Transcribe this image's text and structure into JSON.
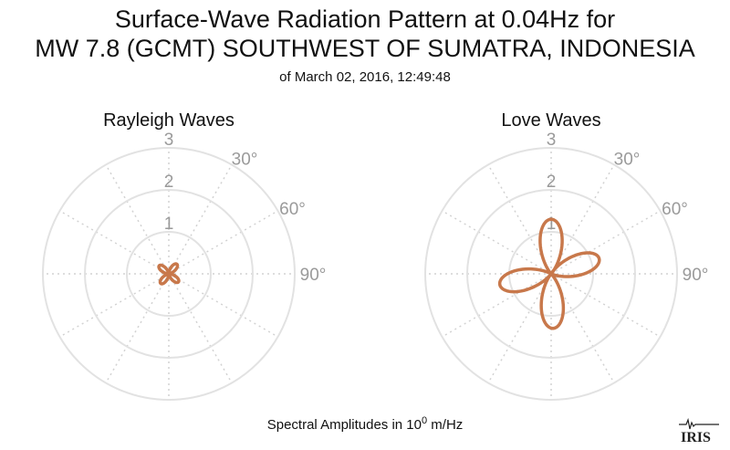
{
  "title": {
    "line1": "Surface-Wave Radiation Pattern at 0.04Hz for",
    "line2": "MW 7.8 (GCMT) SOUTHWEST OF SUMATRA, INDONESIA",
    "line3": "of March 02, 2016, 12:49:48"
  },
  "footer": {
    "prefix": "Spectral Amplitudes in 10",
    "exponent": "0",
    "suffix": " m/Hz"
  },
  "logo": {
    "text": "IRIS"
  },
  "colors": {
    "pattern": "#c8784b",
    "grid": "#e2e2e2",
    "labels": "#9a9a9a"
  },
  "chart_data": [
    {
      "type": "polar-line",
      "title": "Rayleigh Waves",
      "radial_ticks": [
        "1",
        "2",
        "3"
      ],
      "radial_range": [
        0,
        3
      ],
      "angle_ticks": [
        "30°",
        "60°",
        "90°"
      ],
      "series": [
        {
          "lobes": [
            {
              "azimuth_deg": 40,
              "amplitude": 0.3
            },
            {
              "azimuth_deg": 130,
              "amplitude": 0.3
            },
            {
              "azimuth_deg": 220,
              "amplitude": 0.3
            },
            {
              "azimuth_deg": 310,
              "amplitude": 0.3
            }
          ]
        }
      ]
    },
    {
      "type": "polar-line",
      "title": "Love Waves",
      "radial_ticks": [
        "1",
        "2",
        "3"
      ],
      "radial_range": [
        0,
        3
      ],
      "angle_ticks": [
        "30°",
        "60°",
        "90°"
      ],
      "series": [
        {
          "lobes": [
            {
              "azimuth_deg": 0,
              "amplitude": 1.3
            },
            {
              "azimuth_deg": 72,
              "amplitude": 1.2
            },
            {
              "azimuth_deg": 178,
              "amplitude": 1.3
            },
            {
              "azimuth_deg": 258,
              "amplitude": 1.25
            }
          ]
        }
      ]
    }
  ]
}
